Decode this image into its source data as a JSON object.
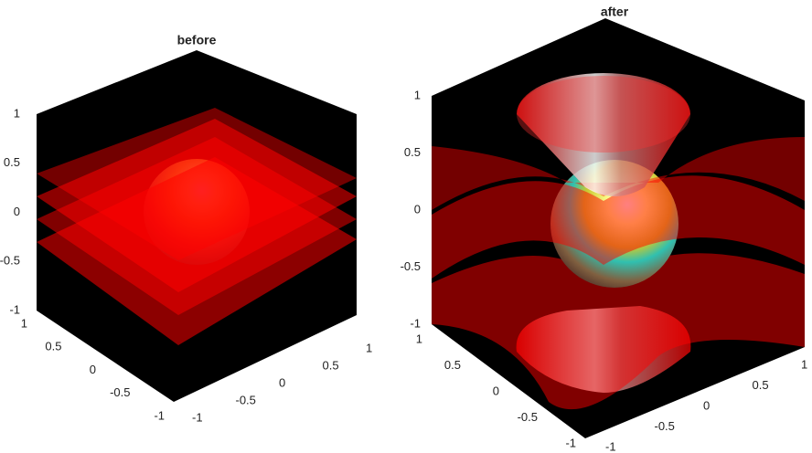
{
  "plots": [
    {
      "title": "before",
      "z_ticks": [
        -1,
        -0.5,
        0,
        0.5,
        1
      ],
      "x_ticks": [
        -1,
        -0.5,
        0,
        0.5,
        1
      ],
      "y_ticks": [
        -1,
        -0.5,
        0,
        0.5,
        1
      ]
    },
    {
      "title": "after",
      "z_ticks": [
        -1,
        -0.5,
        0,
        0.5,
        1
      ],
      "x_ticks": [
        -1,
        -0.5,
        0,
        0.5,
        1
      ],
      "y_ticks": [
        -1,
        -0.5,
        0,
        0.5,
        1
      ]
    }
  ]
}
